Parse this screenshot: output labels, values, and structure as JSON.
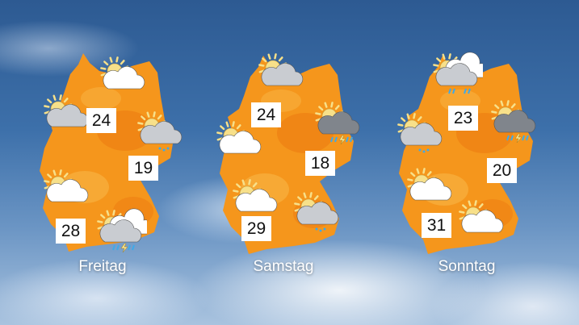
{
  "days": [
    {
      "label": "Freitag",
      "temps": [
        "24",
        "19",
        "28"
      ],
      "icons": [
        "sun-cloud-white",
        "sun-cloud-grey",
        "sun-cloud-grey-drizzle",
        "sun-cloud-white",
        "sun-cloud-grey-extra-thunder"
      ]
    },
    {
      "label": "Samstag",
      "temps": [
        "24",
        "18",
        "29"
      ],
      "icons": [
        "sun-cloud-grey",
        "sun-cloud-white",
        "sun-cloud-dark-rain-thunder",
        "sun-cloud-white",
        "sun-cloud-grey-drizzle"
      ]
    },
    {
      "label": "Sonntag",
      "temps": [
        "23",
        "20",
        "31"
      ],
      "icons": [
        "sun-cloud-grey-extra-rain",
        "sun-cloud-grey-drizzle",
        "sun-cloud-dark-rain-thunder",
        "sun-cloud-white",
        "sun-cloud-white"
      ]
    }
  ],
  "colors": {
    "map": "#f5961c",
    "map_dark": "#ee7f12",
    "map_light": "#f8b040",
    "sun": "#f7e08a",
    "cloud_white": "#ffffff",
    "cloud_grey": "#c9ccd1",
    "cloud_dark": "#80858c",
    "rain": "#3fa9e8"
  }
}
